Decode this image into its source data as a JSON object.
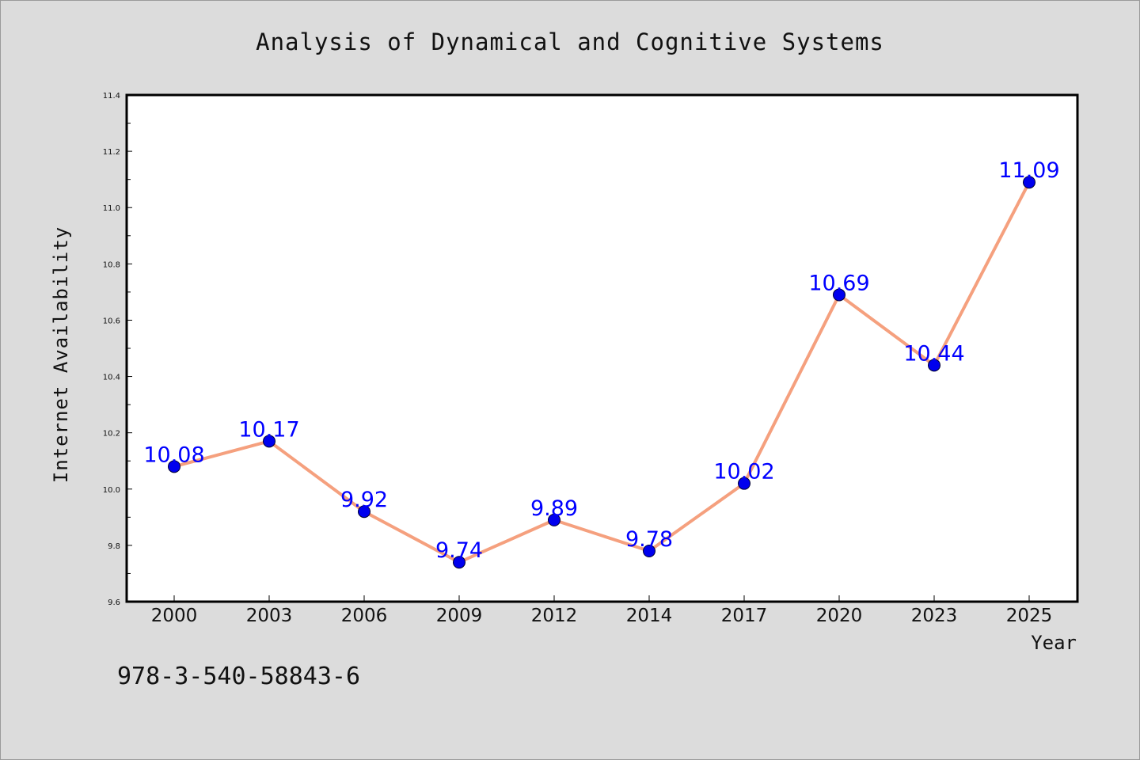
{
  "colors": {
    "background": "#dcdcdc",
    "plot_background": "#ffffff",
    "line": "#f5a07e",
    "marker": "#0000ee",
    "data_label": "#0000ff"
  },
  "footer_text": "978-3-540-58843-6",
  "chart_data": {
    "type": "line",
    "title": "Analysis of Dynamical and Cognitive Systems",
    "xlabel": "Year",
    "ylabel": "Internet Availability",
    "categories": [
      "2000",
      "2003",
      "2006",
      "2009",
      "2012",
      "2014",
      "2017",
      "2020",
      "2023",
      "2025"
    ],
    "series": [
      {
        "values": [
          10.08,
          10.17,
          9.92,
          9.74,
          9.89,
          9.78,
          10.02,
          10.69,
          10.44,
          11.09
        ],
        "labels": [
          "10.08",
          "10.17",
          "9.92",
          "9.74",
          "9.89",
          "9.78",
          "10.02",
          "10.69",
          "10.44",
          "11.09"
        ]
      }
    ],
    "ylim": [
      9.6,
      11.4
    ],
    "yticks": [
      "9.6",
      "9.8",
      "10.0",
      "10.2",
      "10.4",
      "10.6",
      "10.8",
      "11.0",
      "11.2",
      "11.4"
    ],
    "grid": false,
    "legend": "none"
  }
}
